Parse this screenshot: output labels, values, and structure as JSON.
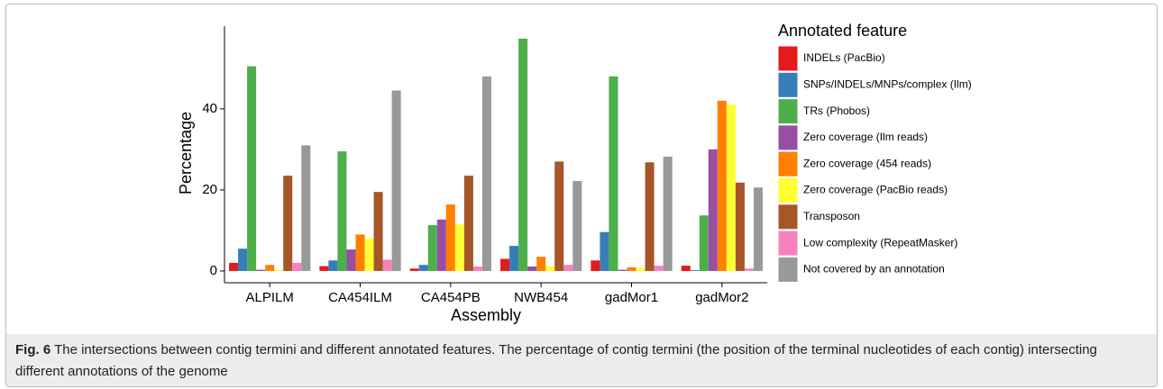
{
  "chart_data": {
    "type": "bar",
    "x_label": "Assembly",
    "y_label": "Percentage",
    "legend_title": "Annotated feature",
    "categories": [
      "ALPILM",
      "CA454ILM",
      "CA454PB",
      "NWB454",
      "gadMor1",
      "gadMor2"
    ],
    "series": [
      {
        "name": "INDELs (PacBio)",
        "color": "#e41a1c",
        "values": [
          2,
          1.2,
          0.6,
          3,
          2.6,
          1.3
        ]
      },
      {
        "name": "SNPs/INDELs/MNPs/complex (Ilm)",
        "color": "#377eb8",
        "values": [
          5.5,
          2.6,
          1.5,
          6.2,
          9.6,
          0.2
        ]
      },
      {
        "name": "TRs (Phobos)",
        "color": "#4daf4a",
        "values": [
          50.5,
          29.5,
          11.3,
          57.3,
          48,
          13.7
        ]
      },
      {
        "name": "Zero coverage (Ilm reads)",
        "color": "#984ea3",
        "values": [
          0.3,
          5.3,
          12.7,
          1.1,
          0.3,
          30
        ]
      },
      {
        "name": "Zero coverage (454 reads)",
        "color": "#ff7f00",
        "values": [
          1.5,
          9,
          16.4,
          3.5,
          0.9,
          42
        ]
      },
      {
        "name": "Zero coverage (PacBio reads)",
        "color": "#ffff33",
        "values": [
          0.3,
          8,
          11.5,
          1.2,
          0.8,
          41
        ]
      },
      {
        "name": "Transposon",
        "color": "#a65628",
        "values": [
          23.5,
          19.5,
          23.5,
          27,
          26.8,
          21.8
        ]
      },
      {
        "name": "Low complexity (RepeatMasker)",
        "color": "#f781bf",
        "values": [
          2,
          2.8,
          1.1,
          1.5,
          1.3,
          0.6
        ]
      },
      {
        "name": "Not covered by an annotation",
        "color": "#999999",
        "values": [
          31,
          44.5,
          48,
          22.2,
          28.2,
          20.6
        ]
      }
    ],
    "ylim": [
      -2.9,
      60.4
    ],
    "yticks": [
      0,
      20,
      40
    ],
    "grid": false
  },
  "caption_label": "Fig. 6",
  "caption": "The intersections between contig termini and different annotated features. The percentage of contig termini (the position of the terminal nucleotides of each contig) intersecting different annotations of the genome"
}
